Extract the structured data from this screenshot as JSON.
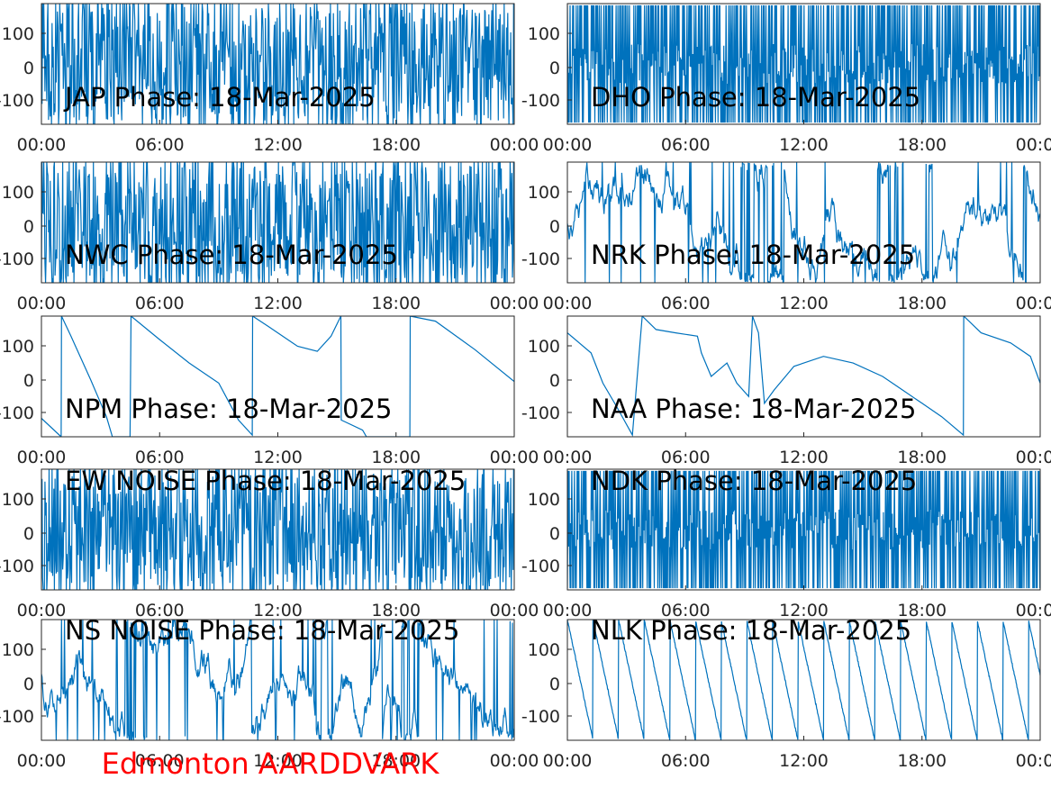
{
  "figure": {
    "footer_label": "Edmonton AARDDVARK",
    "footer_color": "#ff0000",
    "line_color": "#0072bd",
    "axis_color": "#262626"
  },
  "chart_data": [
    {
      "type": "line",
      "title": "JAP Phase: 18-Mar-2025",
      "x_ticks": [
        "00:00",
        "06:00",
        "12:00",
        "18:00",
        "00:00"
      ],
      "y_ticks": [
        "100",
        "0",
        "-100"
      ],
      "ylim": [
        -180,
        180
      ],
      "xlim": [
        0,
        24
      ],
      "pattern": "dense_noise",
      "series": [
        {
          "values": []
        }
      ]
    },
    {
      "type": "line",
      "title": "DHO Phase: 18-Mar-2025",
      "x_ticks": [
        "00:00",
        "06:00",
        "12:00",
        "18:00",
        "00:00"
      ],
      "y_ticks": [
        "100",
        "0",
        "-100"
      ],
      "ylim": [
        -180,
        180
      ],
      "xlim": [
        0,
        24
      ],
      "pattern": "dense_wrap",
      "series": [
        {
          "values": []
        }
      ]
    },
    {
      "type": "line",
      "title": "NWC Phase: 18-Mar-2025",
      "x_ticks": [
        "00:00",
        "06:00",
        "12:00",
        "18:00",
        "00:00"
      ],
      "y_ticks": [
        "100",
        "0",
        "-100"
      ],
      "ylim": [
        -180,
        180
      ],
      "xlim": [
        0,
        24
      ],
      "pattern": "dense_noise",
      "series": [
        {
          "values": []
        }
      ]
    },
    {
      "type": "line",
      "title": "NRK Phase: 18-Mar-2025",
      "x_ticks": [
        "00:00",
        "06:00",
        "12:00",
        "18:00",
        "00:00"
      ],
      "y_ticks": [
        "100",
        "0",
        "-100"
      ],
      "ylim": [
        -180,
        180
      ],
      "xlim": [
        0,
        24
      ],
      "pattern": "noisy_wander",
      "series": [
        {
          "values": []
        }
      ]
    },
    {
      "type": "line",
      "title": "NPM Phase: 18-Mar-2025",
      "x_ticks": [
        "00:00",
        "06:00",
        "12:00",
        "18:00",
        "00:00"
      ],
      "y_ticks": [
        "100",
        "0",
        "-100"
      ],
      "ylim": [
        -180,
        180
      ],
      "xlim": [
        0,
        24
      ],
      "pattern": "points",
      "series": [
        {
          "values": [
            [
              0.0,
              -125
            ],
            [
              1.0,
              -180
            ],
            [
              1.02,
              180
            ],
            [
              1.5,
              120
            ],
            [
              2.5,
              -10
            ],
            [
              3.3,
              -120
            ],
            [
              3.6,
              -180
            ],
            [
              4.5,
              -180
            ],
            [
              4.55,
              180
            ],
            [
              6,
              110
            ],
            [
              7.5,
              40
            ],
            [
              9,
              -20
            ],
            [
              10,
              -130
            ],
            [
              10.7,
              -175
            ],
            [
              10.72,
              180
            ],
            [
              11.5,
              150
            ],
            [
              13,
              90
            ],
            [
              14,
              75
            ],
            [
              14.7,
              120
            ],
            [
              15.2,
              180
            ],
            [
              15.22,
              -130
            ],
            [
              16.3,
              -160
            ],
            [
              16.5,
              -180
            ],
            [
              18.7,
              -180
            ],
            [
              18.72,
              180
            ],
            [
              20,
              165
            ],
            [
              22,
              80
            ],
            [
              24,
              -15
            ]
          ]
        }
      ]
    },
    {
      "type": "line",
      "title": "NAA Phase: 18-Mar-2025",
      "x_ticks": [
        "00:00",
        "06:00",
        "12:00",
        "18:00",
        "00:00"
      ],
      "y_ticks": [
        "100",
        "0",
        "-100"
      ],
      "ylim": [
        -180,
        180
      ],
      "xlim": [
        0,
        24
      ],
      "pattern": "points",
      "series": [
        {
          "values": [
            [
              0.0,
              130
            ],
            [
              1.2,
              70
            ],
            [
              1.8,
              -20
            ],
            [
              2.5,
              -90
            ],
            [
              3.3,
              -175
            ],
            [
              3.8,
              180
            ],
            [
              4.5,
              140
            ],
            [
              5.5,
              130
            ],
            [
              6.6,
              120
            ],
            [
              6.8,
              70
            ],
            [
              7.3,
              0
            ],
            [
              8.1,
              40
            ],
            [
              8.6,
              -20
            ],
            [
              9.2,
              -60
            ],
            [
              9.4,
              180
            ],
            [
              9.7,
              130
            ],
            [
              10.0,
              -80
            ],
            [
              10.5,
              -40
            ],
            [
              11.5,
              30
            ],
            [
              13,
              60
            ],
            [
              14.5,
              40
            ],
            [
              16,
              0
            ],
            [
              17,
              -40
            ],
            [
              18,
              -80
            ],
            [
              19,
              -120
            ],
            [
              20.1,
              -175
            ],
            [
              20.12,
              180
            ],
            [
              21,
              130
            ],
            [
              22.5,
              100
            ],
            [
              23.5,
              60
            ],
            [
              24,
              -20
            ]
          ]
        }
      ]
    },
    {
      "type": "line",
      "title": "EW NOISE Phase: 18-Mar-2025",
      "x_ticks": [
        "00:00",
        "06:00",
        "12:00",
        "18:00",
        "00:00"
      ],
      "y_ticks": [
        "100",
        "0",
        "-100"
      ],
      "ylim": [
        -180,
        180
      ],
      "xlim": [
        0,
        24
      ],
      "pattern": "dense_noise",
      "series": [
        {
          "values": []
        }
      ]
    },
    {
      "type": "line",
      "title": "NDK Phase: 18-Mar-2025",
      "x_ticks": [
        "00:00",
        "06:00",
        "12:00",
        "18:00",
        "00:00"
      ],
      "y_ticks": [
        "100",
        "0",
        "-100"
      ],
      "ylim": [
        -180,
        180
      ],
      "xlim": [
        0,
        24
      ],
      "pattern": "dense_wrap",
      "series": [
        {
          "values": []
        }
      ]
    },
    {
      "type": "line",
      "title": "NS NOISE Phase: 18-Mar-2025",
      "x_ticks": [
        "00:00",
        "06:00",
        "12:00",
        "18:00",
        "00:00"
      ],
      "y_ticks": [
        "100",
        "0",
        "-100"
      ],
      "ylim": [
        -180,
        180
      ],
      "xlim": [
        0,
        24
      ],
      "pattern": "noisy_wander",
      "series": [
        {
          "values": []
        }
      ]
    },
    {
      "type": "line",
      "title": "NLK Phase: 18-Mar-2025",
      "x_ticks": [
        "00:00",
        "06:00",
        "12:00",
        "18:00",
        "00:00"
      ],
      "y_ticks": [
        "100",
        "0",
        "-100"
      ],
      "ylim": [
        -180,
        180
      ],
      "xlim": [
        0,
        24
      ],
      "pattern": "sawtooth",
      "period_hours": 1.3,
      "series": [
        {
          "values": []
        }
      ]
    }
  ]
}
